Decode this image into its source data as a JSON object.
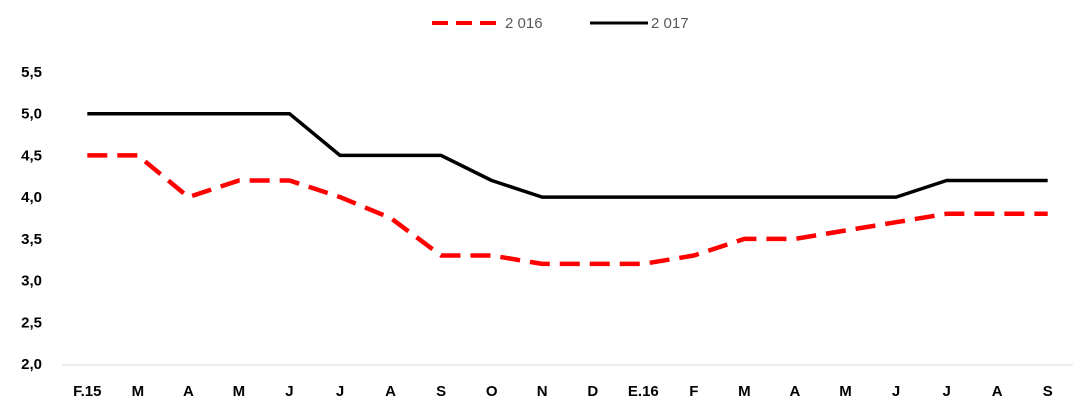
{
  "chart_data": {
    "type": "line",
    "title": "",
    "xlabel": "",
    "ylabel": "",
    "categories": [
      "F.15",
      "M",
      "A",
      "M",
      "J",
      "J",
      "A",
      "S",
      "O",
      "N",
      "D",
      "E.16",
      "F",
      "M",
      "A",
      "M",
      "J",
      "J",
      "A",
      "S"
    ],
    "ylim": [
      2.0,
      5.5
    ],
    "yticks": [
      "2,0",
      "2,5",
      "3,0",
      "3,5",
      "4,0",
      "4,5",
      "5,0",
      "5,5"
    ],
    "ytick_values": [
      2.0,
      2.5,
      3.0,
      3.5,
      4.0,
      4.5,
      5.0,
      5.5
    ],
    "grid": false,
    "legend_position": "top-center",
    "series": [
      {
        "name": "2 016",
        "color": "#FF0000",
        "style": "dashed",
        "values": [
          4.5,
          4.5,
          4.0,
          4.2,
          4.2,
          4.0,
          3.75,
          3.3,
          3.3,
          3.2,
          3.2,
          3.2,
          3.3,
          3.5,
          3.5,
          3.6,
          3.7,
          3.8,
          3.8,
          3.8
        ]
      },
      {
        "name": "2 017",
        "color": "#000000",
        "style": "solid",
        "values": [
          5.0,
          5.0,
          5.0,
          5.0,
          5.0,
          4.5,
          4.5,
          4.5,
          4.2,
          4.0,
          4.0,
          4.0,
          4.0,
          4.0,
          4.0,
          4.0,
          4.0,
          4.2,
          4.2,
          4.2
        ]
      }
    ]
  }
}
